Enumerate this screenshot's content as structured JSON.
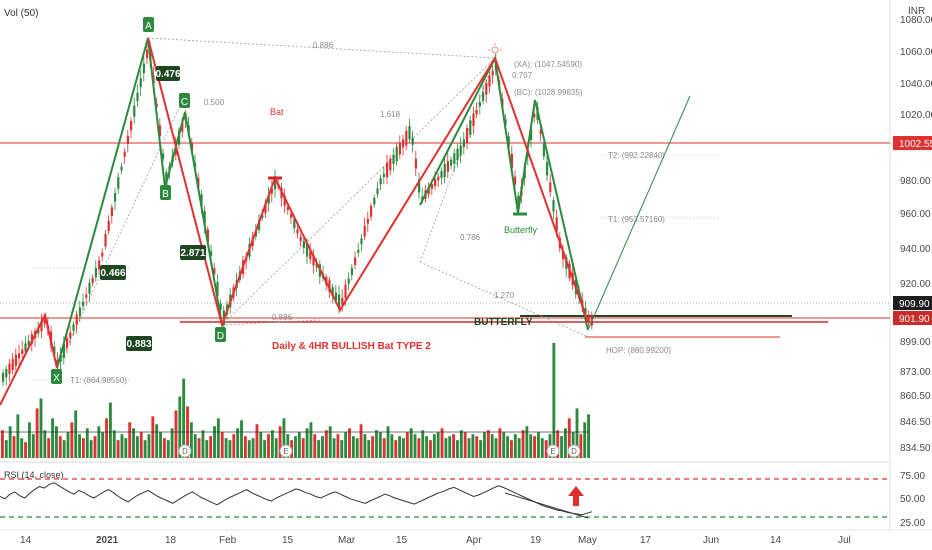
{
  "chart_data": {
    "type": "candlestick-harmonic",
    "indicator_label": "Vol (50)",
    "currency": "INR",
    "x_tick_labels": [
      "14",
      "2021",
      "18",
      "Feb",
      "15",
      "Mar",
      "15",
      "Apr",
      "19",
      "May",
      "17",
      "Jun",
      "14",
      "Jul"
    ],
    "y_tick_labels": [
      "1080.00",
      "1060.00",
      "1040.00",
      "1020.00",
      "980.00",
      "960.00",
      "940.00",
      "920.00",
      "899.00",
      "873.00",
      "860.50",
      "846.50",
      "834.50"
    ],
    "price_badges": [
      {
        "value": "1002.55",
        "color": "#e03131"
      },
      {
        "value": "909.90",
        "color": "#1f1f1f"
      },
      {
        "value": "901.90",
        "color": "#c92a2a"
      }
    ],
    "rsi_label": "RSI (14, close)",
    "rsi_ticks": [
      "75.00",
      "50.00",
      "25.00"
    ],
    "pattern_points": [
      {
        "label": "A",
        "color": "#2b8a3e"
      },
      {
        "label": "B",
        "color": "#2b8a3e"
      },
      {
        "label": "C",
        "color": "#2b8a3e"
      },
      {
        "label": "D",
        "color": "#2b8a3e"
      },
      {
        "label": "X",
        "color": "#2b8a3e"
      }
    ],
    "ratio_labels": [
      "0.476",
      "2.871",
      "0.466",
      "0.883"
    ],
    "dotted_ratios": [
      "0.886",
      "0.500",
      "1.618",
      "0.707",
      "0.786",
      "1.270",
      "0.886"
    ],
    "level_labels": [
      "(XA): (1047.54590)",
      "(BC): (1028.99835)",
      "T2: (992.22840)",
      "T1: (953.57160)",
      "HOP: (880.99200)",
      "T1: (864.98550)"
    ],
    "annotations": {
      "bat": "Bat",
      "butterfly_small": "Butterfly",
      "butterfly_big": "BUTTERFLY",
      "caption": "Daily & 4HR BULLISH Bat TYPE 2"
    },
    "event_markers": [
      "D",
      "E",
      "E",
      "D"
    ],
    "volume_values": [
      14,
      9,
      16,
      11,
      22,
      10,
      8,
      18,
      12,
      25,
      30,
      14,
      10,
      20,
      16,
      11,
      9,
      13,
      18,
      24,
      12,
      10,
      15,
      9,
      11,
      16,
      13,
      20,
      28,
      14,
      9,
      12,
      10,
      18,
      15,
      11,
      13,
      9,
      12,
      21,
      17,
      13,
      10,
      9,
      15,
      24,
      31,
      40,
      26,
      18,
      12,
      10,
      14,
      9,
      11,
      16,
      20,
      13,
      10,
      9,
      12,
      15,
      19,
      11,
      9,
      10,
      17,
      13,
      9,
      12,
      14,
      10,
      16,
      20,
      12,
      9,
      11,
      13,
      10,
      15,
      18,
      12,
      9,
      11,
      14,
      16,
      10,
      12,
      9,
      13,
      15,
      11,
      10,
      17,
      12,
      9,
      11,
      14,
      13,
      10,
      16,
      12,
      9,
      11,
      10,
      13,
      15,
      12,
      10,
      14,
      11,
      9,
      12,
      13,
      15,
      10,
      11,
      12,
      9,
      14,
      13,
      10,
      12,
      11,
      9,
      13,
      14,
      12,
      10,
      15,
      13,
      11,
      9,
      12,
      10,
      14,
      16,
      12,
      11,
      13,
      10,
      9,
      12,
      58,
      14,
      11,
      15,
      20,
      13,
      25,
      12,
      18,
      22
    ],
    "rsi_values": [
      52,
      49,
      55,
      58,
      53,
      50,
      56,
      61,
      65,
      63,
      68,
      70,
      66,
      62,
      58,
      55,
      60,
      57,
      53,
      50,
      54,
      58,
      61,
      57,
      52,
      48,
      45,
      50,
      54,
      57,
      60,
      56,
      52,
      49,
      46,
      43,
      47,
      51,
      55,
      58,
      54,
      50,
      47,
      44,
      41,
      45,
      49,
      52,
      55,
      58,
      61,
      57,
      54,
      51,
      48,
      46,
      50,
      53,
      56,
      59,
      62,
      60,
      57,
      55,
      52,
      50,
      53,
      56,
      58,
      55,
      52,
      49,
      47,
      45,
      43,
      46,
      49,
      52,
      55,
      53,
      50,
      48,
      46,
      44,
      42,
      45,
      48,
      51,
      54,
      57,
      59,
      62,
      64,
      61,
      58,
      55,
      52,
      54,
      57,
      60,
      63,
      66,
      64,
      61,
      58,
      55,
      52,
      49,
      46,
      43,
      40,
      38,
      36,
      34,
      33,
      31,
      30,
      29,
      28,
      30,
      32
    ]
  }
}
